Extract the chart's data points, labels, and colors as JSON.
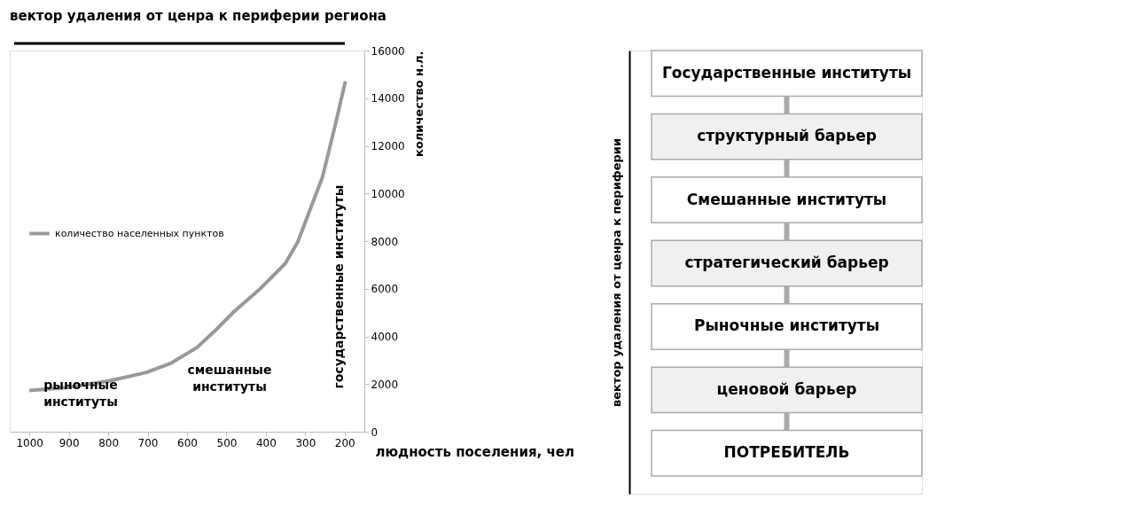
{
  "chart_data": [
    {
      "type": "line",
      "title": "вектор удаления от ценра к периферии региона",
      "xlabel": "людность поселения, чел",
      "ylabel": "количество н.л.",
      "xlim": [
        1050,
        150
      ],
      "xticks": [
        1000,
        900,
        800,
        700,
        600,
        500,
        400,
        300,
        200
      ],
      "ylim": [
        0,
        16000
      ],
      "yticks": [
        0,
        2000,
        4000,
        6000,
        8000,
        10000,
        12000,
        14000,
        16000
      ],
      "legend": "left",
      "grid": false,
      "line_style": "solid",
      "marker": "none",
      "series": [
        {
          "name": "количество населенных пунктов",
          "color": "#999999",
          "x": [
            1000,
            905,
            798,
            703,
            639,
            575,
            530,
            480,
            415,
            351,
            319,
            256,
            224,
            198
          ],
          "values": [
            1730,
            1850,
            2130,
            2490,
            2890,
            3530,
            4220,
            5050,
            5990,
            7050,
            7960,
            10700,
            12860,
            14710
          ]
        }
      ],
      "annotations": [
        "рыночные институты",
        "смешанные институты",
        "государственные институты"
      ]
    },
    {
      "type": "other",
      "ylabel": "вектор удаления от ценра к периферии",
      "annotations": [
        "Государственные институты",
        "структурный барьер",
        "Смешанные институты",
        "стратегический барьер",
        "Рыночные институты",
        "ценовой барьер",
        "ПОТРЕБИТЕЛЬ"
      ]
    }
  ]
}
